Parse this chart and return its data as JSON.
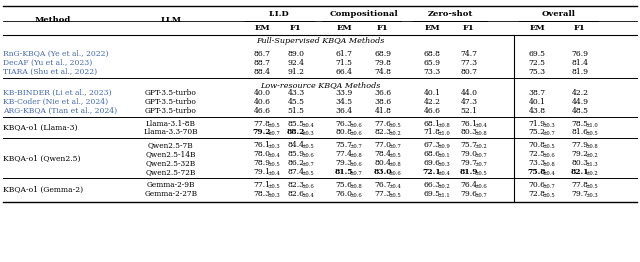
{
  "section1_title": "Full-Supervised KBQA Methods",
  "section2_title": "Low-resource KBQA Methods",
  "rows": [
    {
      "group": "full_supervised",
      "method": "RnG-KBQA (Ye et al., 2022)",
      "method_blue": true,
      "llm": "",
      "vals": [
        "86.7",
        "89.0",
        "61.7",
        "68.9",
        "68.8",
        "74.7",
        "69.5",
        "76.9"
      ],
      "bolds": [
        false,
        false,
        false,
        false,
        false,
        false,
        false,
        false
      ]
    },
    {
      "group": "full_supervised",
      "method": "DecAF (Yu et al., 2023)",
      "method_blue": true,
      "llm": "",
      "vals": [
        "88.7",
        "92.4",
        "71.5",
        "79.8",
        "65.9",
        "77.3",
        "72.5",
        "81.4"
      ],
      "bolds": [
        false,
        false,
        false,
        false,
        false,
        false,
        false,
        false
      ]
    },
    {
      "group": "full_supervised",
      "method": "TIARA (Shu et al., 2022)",
      "method_blue": true,
      "llm": "",
      "vals": [
        "88.4",
        "91.2",
        "66.4",
        "74.8",
        "73.3",
        "80.7",
        "75.3",
        "81.9"
      ],
      "bolds": [
        false,
        false,
        false,
        false,
        false,
        false,
        false,
        false
      ]
    },
    {
      "group": "low_resource",
      "method": "KB-BINDER (Li et al., 2023)",
      "method_blue": true,
      "llm": "GPT-3.5-turbo",
      "vals": [
        "40.0",
        "43.3",
        "33.9",
        "36.6",
        "40.1",
        "44.0",
        "38.7",
        "42.2"
      ],
      "bolds": [
        false,
        false,
        false,
        false,
        false,
        false,
        false,
        false
      ]
    },
    {
      "group": "low_resource",
      "method": "KB-Coder (Nie et al., 2024)",
      "method_blue": true,
      "llm": "GPT-3.5-turbo",
      "vals": [
        "40.6",
        "45.5",
        "34.5",
        "38.6",
        "42.2",
        "47.3",
        "40.1",
        "44.9"
      ],
      "bolds": [
        false,
        false,
        false,
        false,
        false,
        false,
        false,
        false
      ]
    },
    {
      "group": "low_resource",
      "method": "ARG-KBQA (Tian et al., 2024)",
      "method_blue": true,
      "llm": "GPT-3.5-turbo",
      "vals": [
        "46.6",
        "51.5",
        "36.4",
        "41.8",
        "46.6",
        "52.1",
        "43.8",
        "48.5"
      ],
      "bolds": [
        false,
        false,
        false,
        false,
        false,
        false,
        false,
        false
      ]
    },
    {
      "group": "kbqa_llama3",
      "method": "KBQA-o1 (Llama-3)",
      "method_blue": false,
      "llm": "Llama-3.1-8B",
      "vals": [
        "77.8±0.5",
        "85.5±0.4",
        "76.3±0.6",
        "77.6±0.5",
        "68.1±0.8",
        "76.1±0.4",
        "71.9±0.3",
        "78.5±1.0"
      ],
      "bolds": [
        false,
        false,
        false,
        false,
        false,
        false,
        false,
        false
      ]
    },
    {
      "group": "kbqa_llama3",
      "method": "",
      "method_blue": false,
      "llm": "Llama-3.3-70B",
      "vals": [
        "79.2±0.7",
        "88.2±0.3",
        "80.8±0.6",
        "82.3±0.2",
        "71.8±1.0",
        "80.3±0.8",
        "75.2±0.7",
        "81.6±0.5"
      ],
      "bolds": [
        true,
        true,
        false,
        false,
        false,
        false,
        false,
        false
      ]
    },
    {
      "group": "kbqa_qwen25",
      "method": "KBQA-o1 (Qwen2.5)",
      "method_blue": false,
      "llm": "Qwen2.5-7B",
      "vals": [
        "76.1±0.3",
        "84.4±0.5",
        "75.7±0.7",
        "77.0±0.7",
        "67.3±0.9",
        "75.7±0.2",
        "70.8±0.5",
        "77.9±0.8"
      ],
      "bolds": [
        false,
        false,
        false,
        false,
        false,
        false,
        false,
        false
      ]
    },
    {
      "group": "kbqa_qwen25",
      "method": "",
      "method_blue": false,
      "llm": "Qwen2.5-14B",
      "vals": [
        "78.0±0.4",
        "85.9±0.6",
        "77.4±0.8",
        "78.4±0.5",
        "68.6±0.1",
        "79.0±0.7",
        "72.5±0.6",
        "79.2±0.2"
      ],
      "bolds": [
        false,
        false,
        false,
        false,
        false,
        false,
        false,
        false
      ]
    },
    {
      "group": "kbqa_qwen25",
      "method": "",
      "method_blue": false,
      "llm": "Qwen2.5-32B",
      "vals": [
        "78.9±0.5",
        "86.2±0.7",
        "79.3±0.6",
        "80.4±0.8",
        "69.6±0.3",
        "79.7±0.7",
        "73.3±0.8",
        "80.3±1.3"
      ],
      "bolds": [
        false,
        false,
        false,
        false,
        false,
        false,
        false,
        false
      ]
    },
    {
      "group": "kbqa_qwen25",
      "method": "",
      "method_blue": false,
      "llm": "Qwen2.5-72B",
      "vals": [
        "79.1±0.4",
        "87.4±0.5",
        "81.5±0.7",
        "83.0±0.6",
        "72.1±0.4",
        "81.9±0.5",
        "75.8±0.4",
        "82.1±0.2"
      ],
      "bolds": [
        false,
        false,
        true,
        true,
        true,
        true,
        true,
        true
      ]
    },
    {
      "group": "kbqa_gemma2",
      "method": "KBQA-o1 (Gemma-2)",
      "method_blue": false,
      "llm": "Gemma-2-9B",
      "vals": [
        "77.1±0.5",
        "82.3±0.6",
        "75.6±0.8",
        "76.7±0.4",
        "66.3±0.2",
        "76.4±0.6",
        "70.6±0.7",
        "77.8±0.5"
      ],
      "bolds": [
        false,
        false,
        false,
        false,
        false,
        false,
        false,
        false
      ]
    },
    {
      "group": "kbqa_gemma2",
      "method": "",
      "method_blue": false,
      "llm": "Gemma-2-27B",
      "vals": [
        "78.3±0.3",
        "82.6±0.4",
        "76.0±0.6",
        "77.3±0.5",
        "69.5±1.1",
        "79.6±0.7",
        "72.8±0.5",
        "79.7±0.3"
      ],
      "bolds": [
        false,
        false,
        false,
        false,
        false,
        false,
        false,
        false
      ]
    }
  ],
  "blue_color": "#4169B0",
  "bg_color": "#FFFFFF"
}
